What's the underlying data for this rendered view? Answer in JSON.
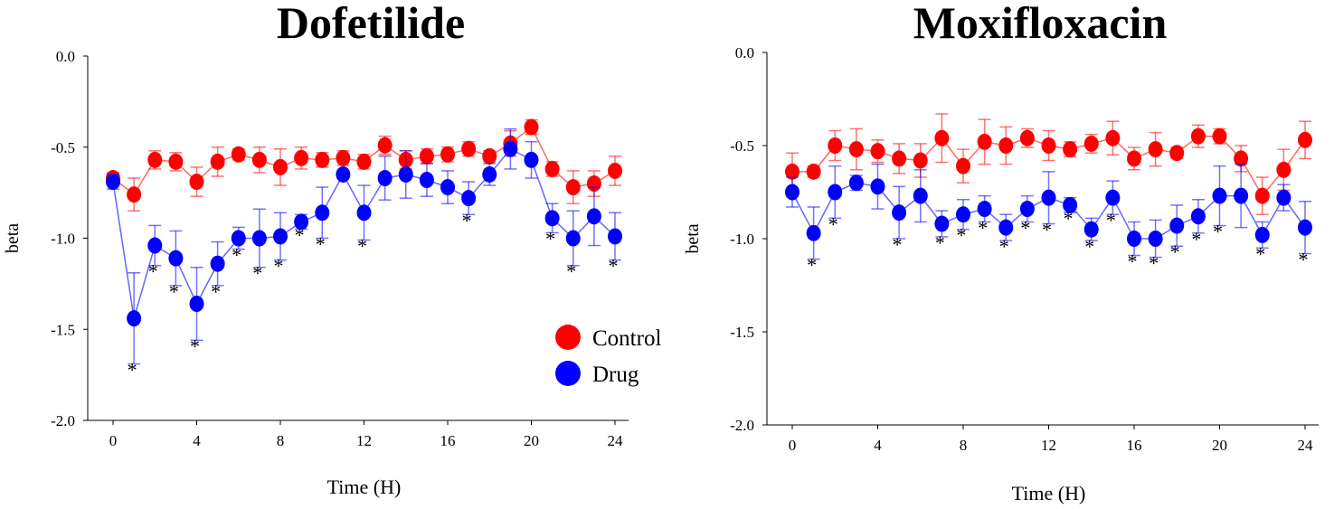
{
  "chart_data": [
    {
      "type": "line",
      "title": "Dofetilide",
      "xlabel": "Time (H)",
      "ylabel": "beta",
      "xlim": [
        0,
        24
      ],
      "ylim": [
        -2.0,
        0.0
      ],
      "xticks": [
        "0",
        "4",
        "8",
        "12",
        "16",
        "20",
        "24"
      ],
      "yticks": [
        "0.0",
        "-0.5",
        "-1.0",
        "-1.5",
        "-2.0"
      ],
      "legend": {
        "position": "lower-right",
        "entries": [
          "Control",
          "Drug"
        ]
      },
      "x": [
        0,
        1,
        2,
        3,
        4,
        5,
        6,
        7,
        8,
        9,
        10,
        11,
        12,
        13,
        14,
        15,
        16,
        17,
        18,
        19,
        20,
        21,
        22,
        23,
        24
      ],
      "series": [
        {
          "name": "Control",
          "color": "#ff0000",
          "values": [
            -0.67,
            -0.76,
            -0.57,
            -0.58,
            -0.69,
            -0.58,
            -0.54,
            -0.57,
            -0.61,
            -0.56,
            -0.57,
            -0.56,
            -0.58,
            -0.49,
            -0.57,
            -0.55,
            -0.54,
            -0.51,
            -0.55,
            -0.48,
            -0.39,
            -0.62,
            -0.72,
            -0.7,
            -0.63
          ],
          "errors": [
            0.03,
            0.09,
            0.05,
            0.05,
            0.08,
            0.08,
            0.03,
            0.07,
            0.1,
            0.06,
            0.04,
            0.04,
            0.04,
            0.05,
            0.05,
            0.04,
            0.04,
            0.04,
            0.03,
            0.07,
            0.04,
            0.04,
            0.09,
            0.07,
            0.08
          ]
        },
        {
          "name": "Drug",
          "color": "#0000ff",
          "values": [
            -0.69,
            -1.44,
            -1.04,
            -1.11,
            -1.36,
            -1.14,
            -1.0,
            -1.0,
            -0.99,
            -0.91,
            -0.86,
            -0.65,
            -0.86,
            -0.67,
            -0.65,
            -0.68,
            -0.72,
            -0.78,
            -0.65,
            -0.51,
            -0.57,
            -0.89,
            -1.0,
            -0.88,
            -0.99
          ],
          "errors": [
            0.04,
            0.25,
            0.11,
            0.15,
            0.2,
            0.12,
            0.06,
            0.16,
            0.13,
            0.04,
            0.14,
            0.02,
            0.15,
            0.12,
            0.13,
            0.09,
            0.09,
            0.09,
            0.06,
            0.11,
            0.1,
            0.08,
            0.15,
            0.16,
            0.13
          ],
          "significant_hours": [
            1,
            2,
            3,
            4,
            5,
            6,
            7,
            8,
            9,
            10,
            12,
            17,
            21,
            22,
            24
          ]
        }
      ],
      "significance_marker": "*"
    },
    {
      "type": "line",
      "title": "Moxifloxacin",
      "xlabel": "Time (H)",
      "ylabel": "beta",
      "xlim": [
        0,
        24
      ],
      "ylim": [
        -2.0,
        0.0
      ],
      "xticks": [
        "0",
        "4",
        "8",
        "12",
        "16",
        "20",
        "24"
      ],
      "yticks": [
        "0.0",
        "-0.5",
        "-1.0",
        "-1.5",
        "-2.0"
      ],
      "x": [
        0,
        1,
        2,
        3,
        4,
        5,
        6,
        7,
        8,
        9,
        10,
        11,
        12,
        13,
        14,
        15,
        16,
        17,
        18,
        19,
        20,
        21,
        22,
        23,
        24
      ],
      "series": [
        {
          "name": "Control",
          "color": "#ff0000",
          "values": [
            -0.64,
            -0.64,
            -0.5,
            -0.52,
            -0.53,
            -0.57,
            -0.58,
            -0.46,
            -0.61,
            -0.48,
            -0.5,
            -0.46,
            -0.5,
            -0.52,
            -0.49,
            -0.46,
            -0.57,
            -0.52,
            -0.54,
            -0.45,
            -0.45,
            -0.57,
            -0.77,
            -0.63,
            -0.47
          ],
          "errors": [
            0.1,
            0.03,
            0.08,
            0.11,
            0.06,
            0.08,
            0.09,
            0.13,
            0.09,
            0.12,
            0.1,
            0.05,
            0.08,
            0.04,
            0.05,
            0.09,
            0.06,
            0.09,
            0.03,
            0.06,
            0.04,
            0.07,
            0.1,
            0.11,
            0.1
          ]
        },
        {
          "name": "Drug",
          "color": "#0000ff",
          "values": [
            -0.75,
            -0.97,
            -0.75,
            -0.7,
            -0.72,
            -0.86,
            -0.77,
            -0.92,
            -0.87,
            -0.84,
            -0.94,
            -0.84,
            -0.78,
            -0.82,
            -0.95,
            -0.78,
            -1.0,
            -1.0,
            -0.93,
            -0.88,
            -0.77,
            -0.77,
            -0.98,
            -0.78,
            -0.94
          ],
          "errors": [
            0.08,
            0.14,
            0.14,
            0.04,
            0.12,
            0.14,
            0.14,
            0.07,
            0.08,
            0.07,
            0.07,
            0.07,
            0.14,
            0.04,
            0.06,
            0.09,
            0.09,
            0.1,
            0.11,
            0.09,
            0.16,
            0.17,
            0.07,
            0.07,
            0.14
          ],
          "significant_hours": [
            1,
            2,
            5,
            7,
            8,
            9,
            10,
            11,
            12,
            13,
            14,
            15,
            16,
            17,
            18,
            19,
            20,
            22,
            24
          ]
        }
      ],
      "significance_marker": "*"
    }
  ]
}
